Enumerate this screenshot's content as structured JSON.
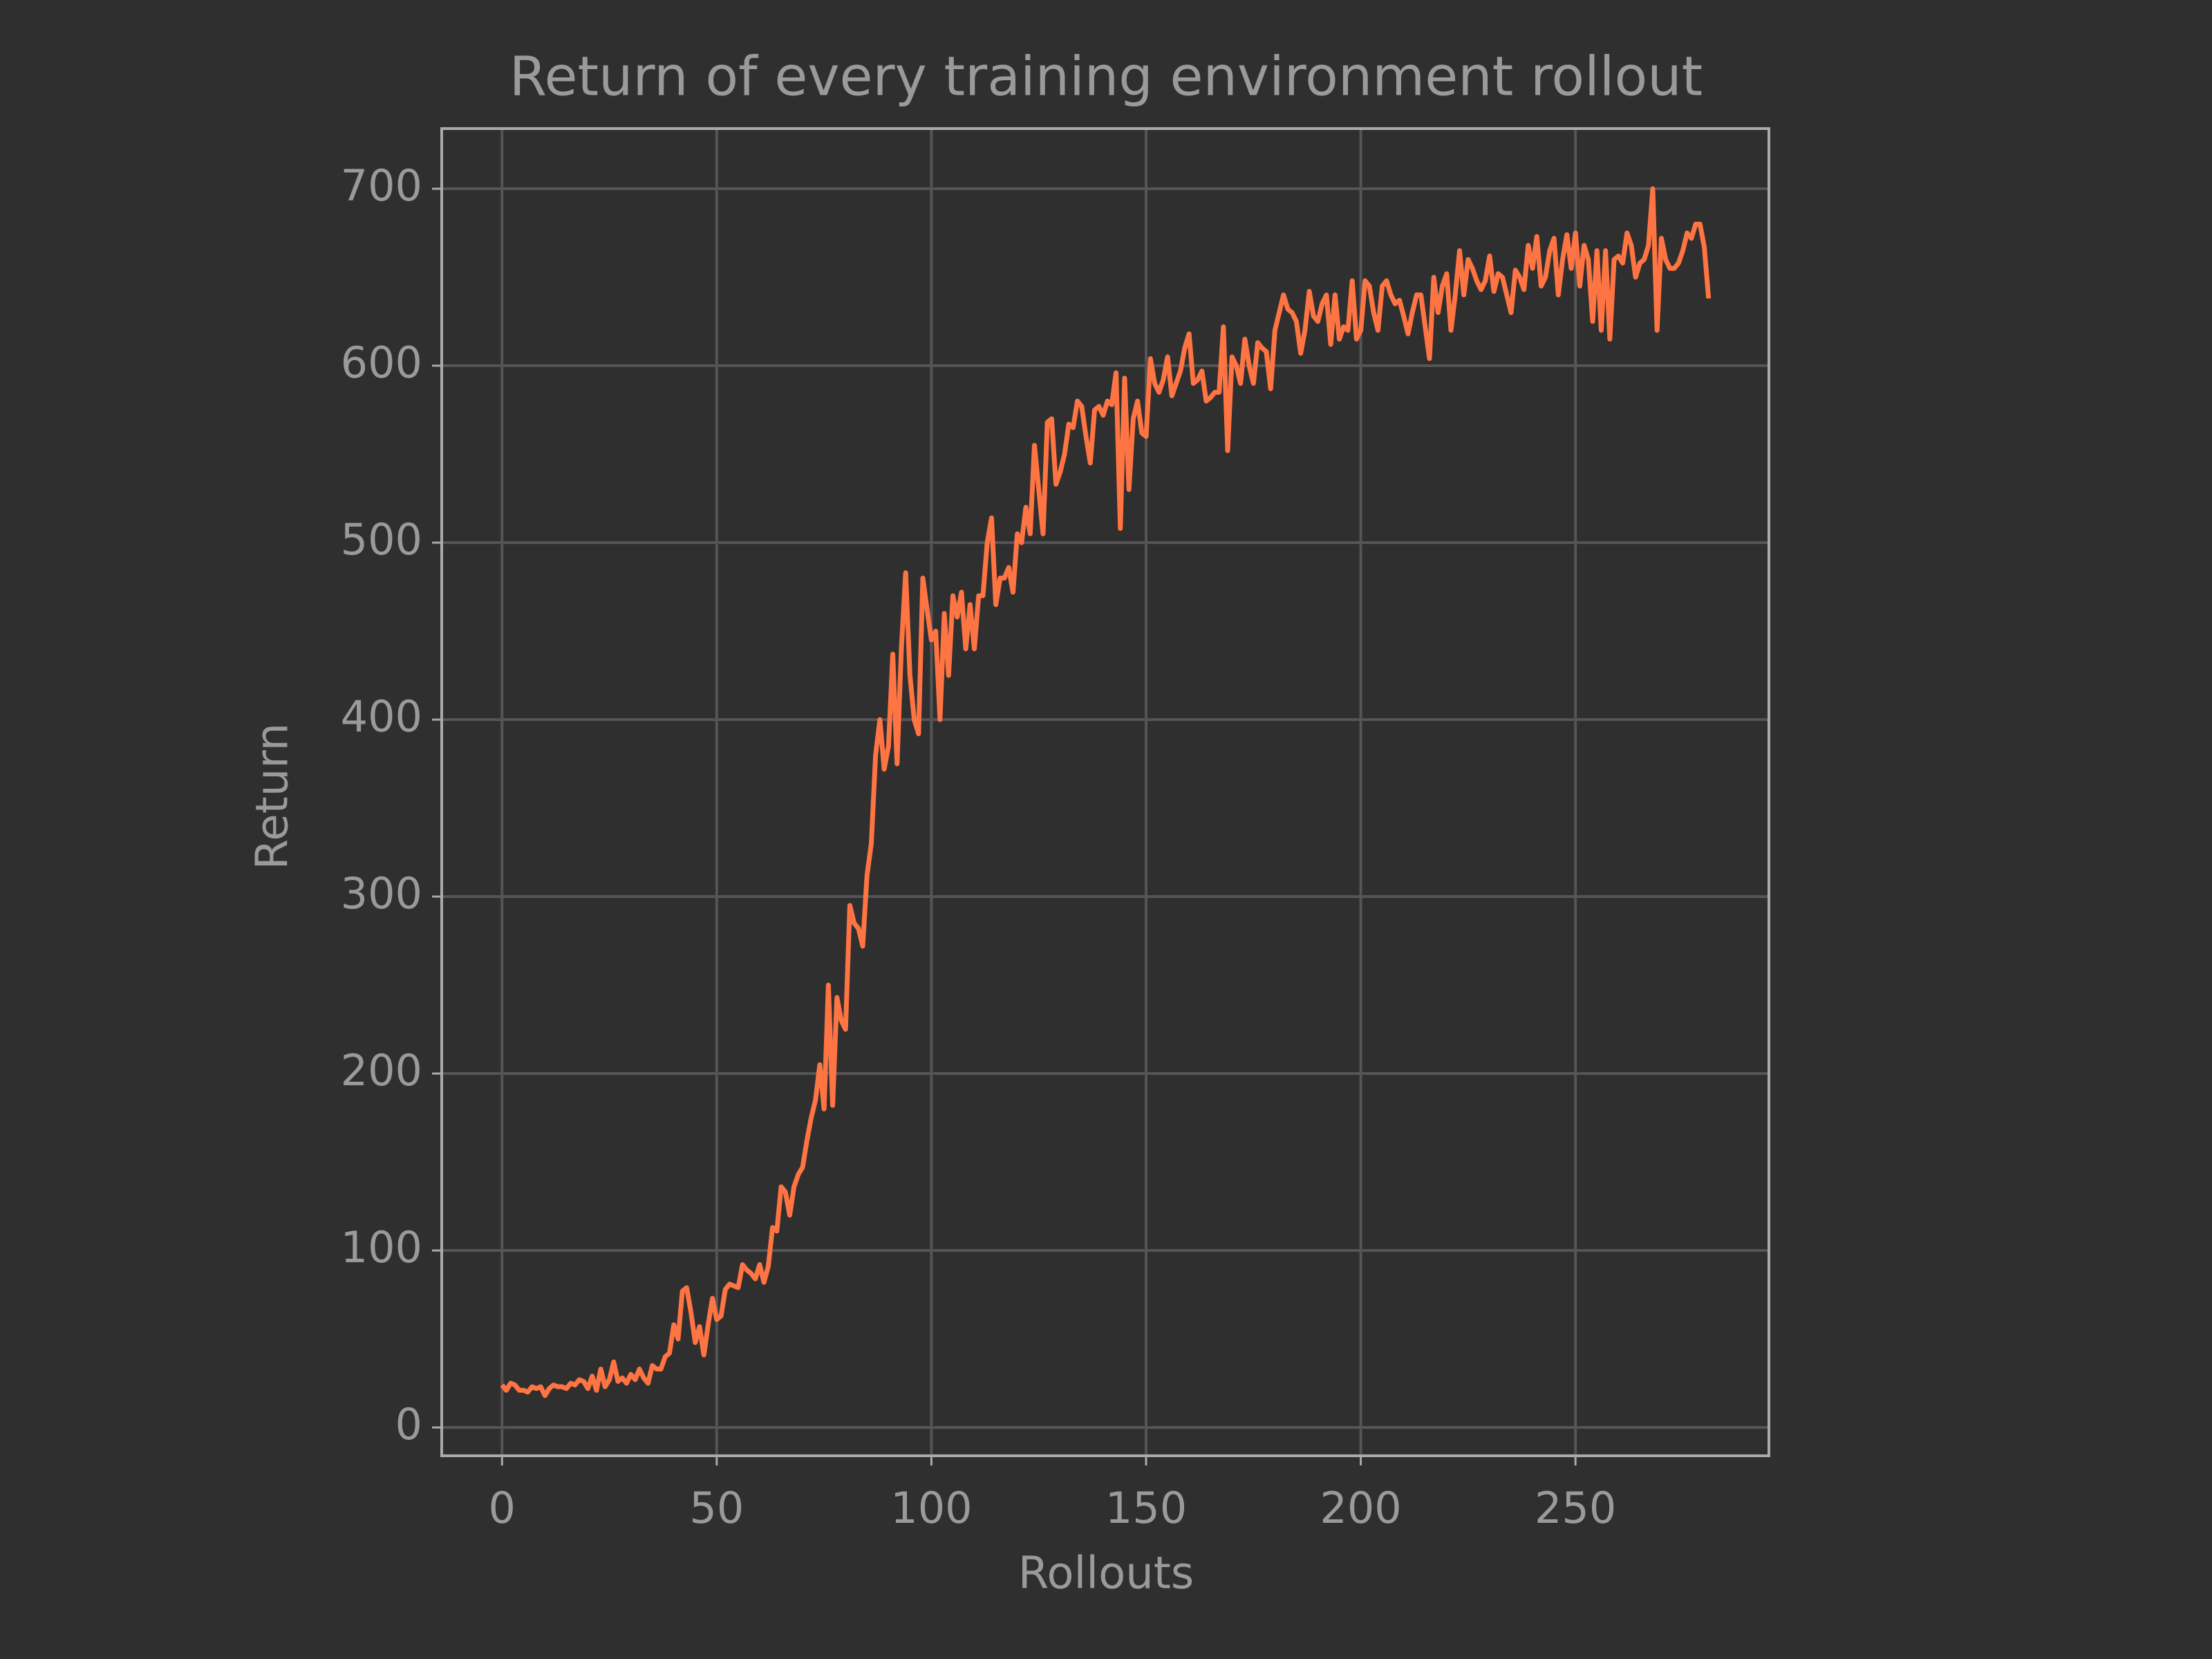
{
  "chart_data": {
    "type": "line",
    "title": "Return of every training environment rollout",
    "x_label": "Rollouts",
    "y_label": "Return",
    "color": "#ff7443",
    "grid": true,
    "xlim": [
      -14.05,
      295.05
    ],
    "ylim": [
      -16,
      734
    ],
    "xticks": [
      0,
      50,
      100,
      150,
      200,
      250
    ],
    "yticks": [
      0,
      100,
      200,
      300,
      400,
      500,
      600,
      700
    ],
    "x": [
      0,
      1,
      2,
      3,
      4,
      5,
      6,
      7,
      8,
      9,
      10,
      11,
      12,
      13,
      14,
      15,
      16,
      17,
      18,
      19,
      20,
      21,
      22,
      23,
      24,
      25,
      26,
      27,
      28,
      29,
      30,
      31,
      32,
      33,
      34,
      35,
      36,
      37,
      38,
      39,
      40,
      41,
      42,
      43,
      44,
      45,
      46,
      47,
      48,
      49,
      50,
      51,
      52,
      53,
      54,
      55,
      56,
      57,
      58,
      59,
      60,
      61,
      62,
      63,
      64,
      65,
      66,
      67,
      68,
      69,
      70,
      71,
      72,
      73,
      74,
      75,
      76,
      77,
      78,
      79,
      80,
      81,
      82,
      83,
      84,
      85,
      86,
      87,
      88,
      89,
      90,
      91,
      92,
      93,
      94,
      95,
      96,
      97,
      98,
      99,
      100,
      101,
      102,
      103,
      104,
      105,
      106,
      107,
      108,
      109,
      110,
      111,
      112,
      113,
      114,
      115,
      116,
      117,
      118,
      119,
      120,
      121,
      122,
      123,
      124,
      125,
      126,
      127,
      128,
      129,
      130,
      131,
      132,
      133,
      134,
      135,
      136,
      137,
      138,
      139,
      140,
      141,
      142,
      143,
      144,
      145,
      146,
      147,
      148,
      149,
      150,
      151,
      152,
      153,
      154,
      155,
      156,
      157,
      158,
      159,
      160,
      161,
      162,
      163,
      164,
      165,
      166,
      167,
      168,
      169,
      170,
      171,
      172,
      173,
      174,
      175,
      176,
      177,
      178,
      179,
      180,
      181,
      182,
      183,
      184,
      185,
      186,
      187,
      188,
      189,
      190,
      191,
      192,
      193,
      194,
      195,
      196,
      197,
      198,
      199,
      200,
      201,
      202,
      203,
      204,
      205,
      206,
      207,
      208,
      209,
      210,
      211,
      212,
      213,
      214,
      215,
      216,
      217,
      218,
      219,
      220,
      221,
      222,
      223,
      224,
      225,
      226,
      227,
      228,
      229,
      230,
      231,
      232,
      233,
      234,
      235,
      236,
      237,
      238,
      239,
      240,
      241,
      242,
      243,
      244,
      245,
      246,
      247,
      248,
      249,
      250,
      251,
      252,
      253,
      254,
      255,
      256,
      257,
      258,
      259,
      260,
      261,
      262,
      263,
      264,
      265,
      266,
      267,
      268,
      269,
      270,
      271,
      272,
      273,
      274,
      275,
      276,
      277,
      278,
      279,
      280,
      281
    ],
    "values": [
      24,
      21,
      25,
      24,
      21,
      21,
      20,
      23,
      22,
      23,
      18,
      22,
      24,
      23,
      23,
      22,
      25,
      24,
      27,
      26,
      22,
      29,
      21,
      33,
      23,
      27,
      37,
      26,
      28,
      25,
      30,
      27,
      33,
      28,
      25,
      35,
      33,
      33,
      40,
      42,
      58,
      50,
      77,
      79,
      65,
      48,
      57,
      41,
      58,
      73,
      61,
      63,
      78,
      81,
      80,
      79,
      92,
      89,
      87,
      84,
      92,
      82,
      91,
      113,
      111,
      136,
      133,
      120,
      136,
      143,
      147,
      162,
      175,
      185,
      205,
      180,
      250,
      182,
      243,
      230,
      225,
      295,
      285,
      282,
      272,
      312,
      330,
      380,
      400,
      372,
      385,
      437,
      375,
      440,
      483,
      425,
      400,
      392,
      480,
      462,
      445,
      450,
      400,
      460,
      425,
      470,
      458,
      472,
      440,
      465,
      440,
      470,
      470,
      500,
      514,
      465,
      480,
      480,
      486,
      472,
      505,
      500,
      520,
      505,
      555,
      530,
      505,
      568,
      570,
      533,
      540,
      550,
      567,
      565,
      580,
      577,
      560,
      545,
      575,
      577,
      572,
      580,
      578,
      596,
      508,
      593,
      530,
      570,
      580,
      562,
      560,
      604,
      590,
      585,
      592,
      605,
      583,
      590,
      597,
      610,
      618,
      590,
      592,
      597,
      580,
      582,
      585,
      585,
      622,
      552,
      605,
      600,
      590,
      615,
      600,
      590,
      613,
      610,
      608,
      587,
      620,
      630,
      640,
      632,
      630,
      625,
      607,
      620,
      642,
      628,
      625,
      635,
      640,
      612,
      640,
      615,
      622,
      620,
      648,
      615,
      620,
      648,
      645,
      630,
      620,
      645,
      648,
      640,
      635,
      637,
      628,
      618,
      630,
      640,
      640,
      622,
      604,
      650,
      630,
      645,
      652,
      620,
      640,
      665,
      640,
      660,
      655,
      648,
      643,
      648,
      662,
      642,
      652,
      650,
      640,
      630,
      654,
      650,
      643,
      668,
      655,
      673,
      645,
      650,
      665,
      672,
      640,
      660,
      674,
      655,
      675,
      645,
      668,
      660,
      625,
      665,
      620,
      665,
      615,
      660,
      662,
      658,
      675,
      668,
      650,
      658,
      660,
      668,
      700,
      620,
      672,
      660,
      655,
      655,
      658,
      665,
      675,
      672,
      680,
      680,
      667,
      638
    ]
  }
}
